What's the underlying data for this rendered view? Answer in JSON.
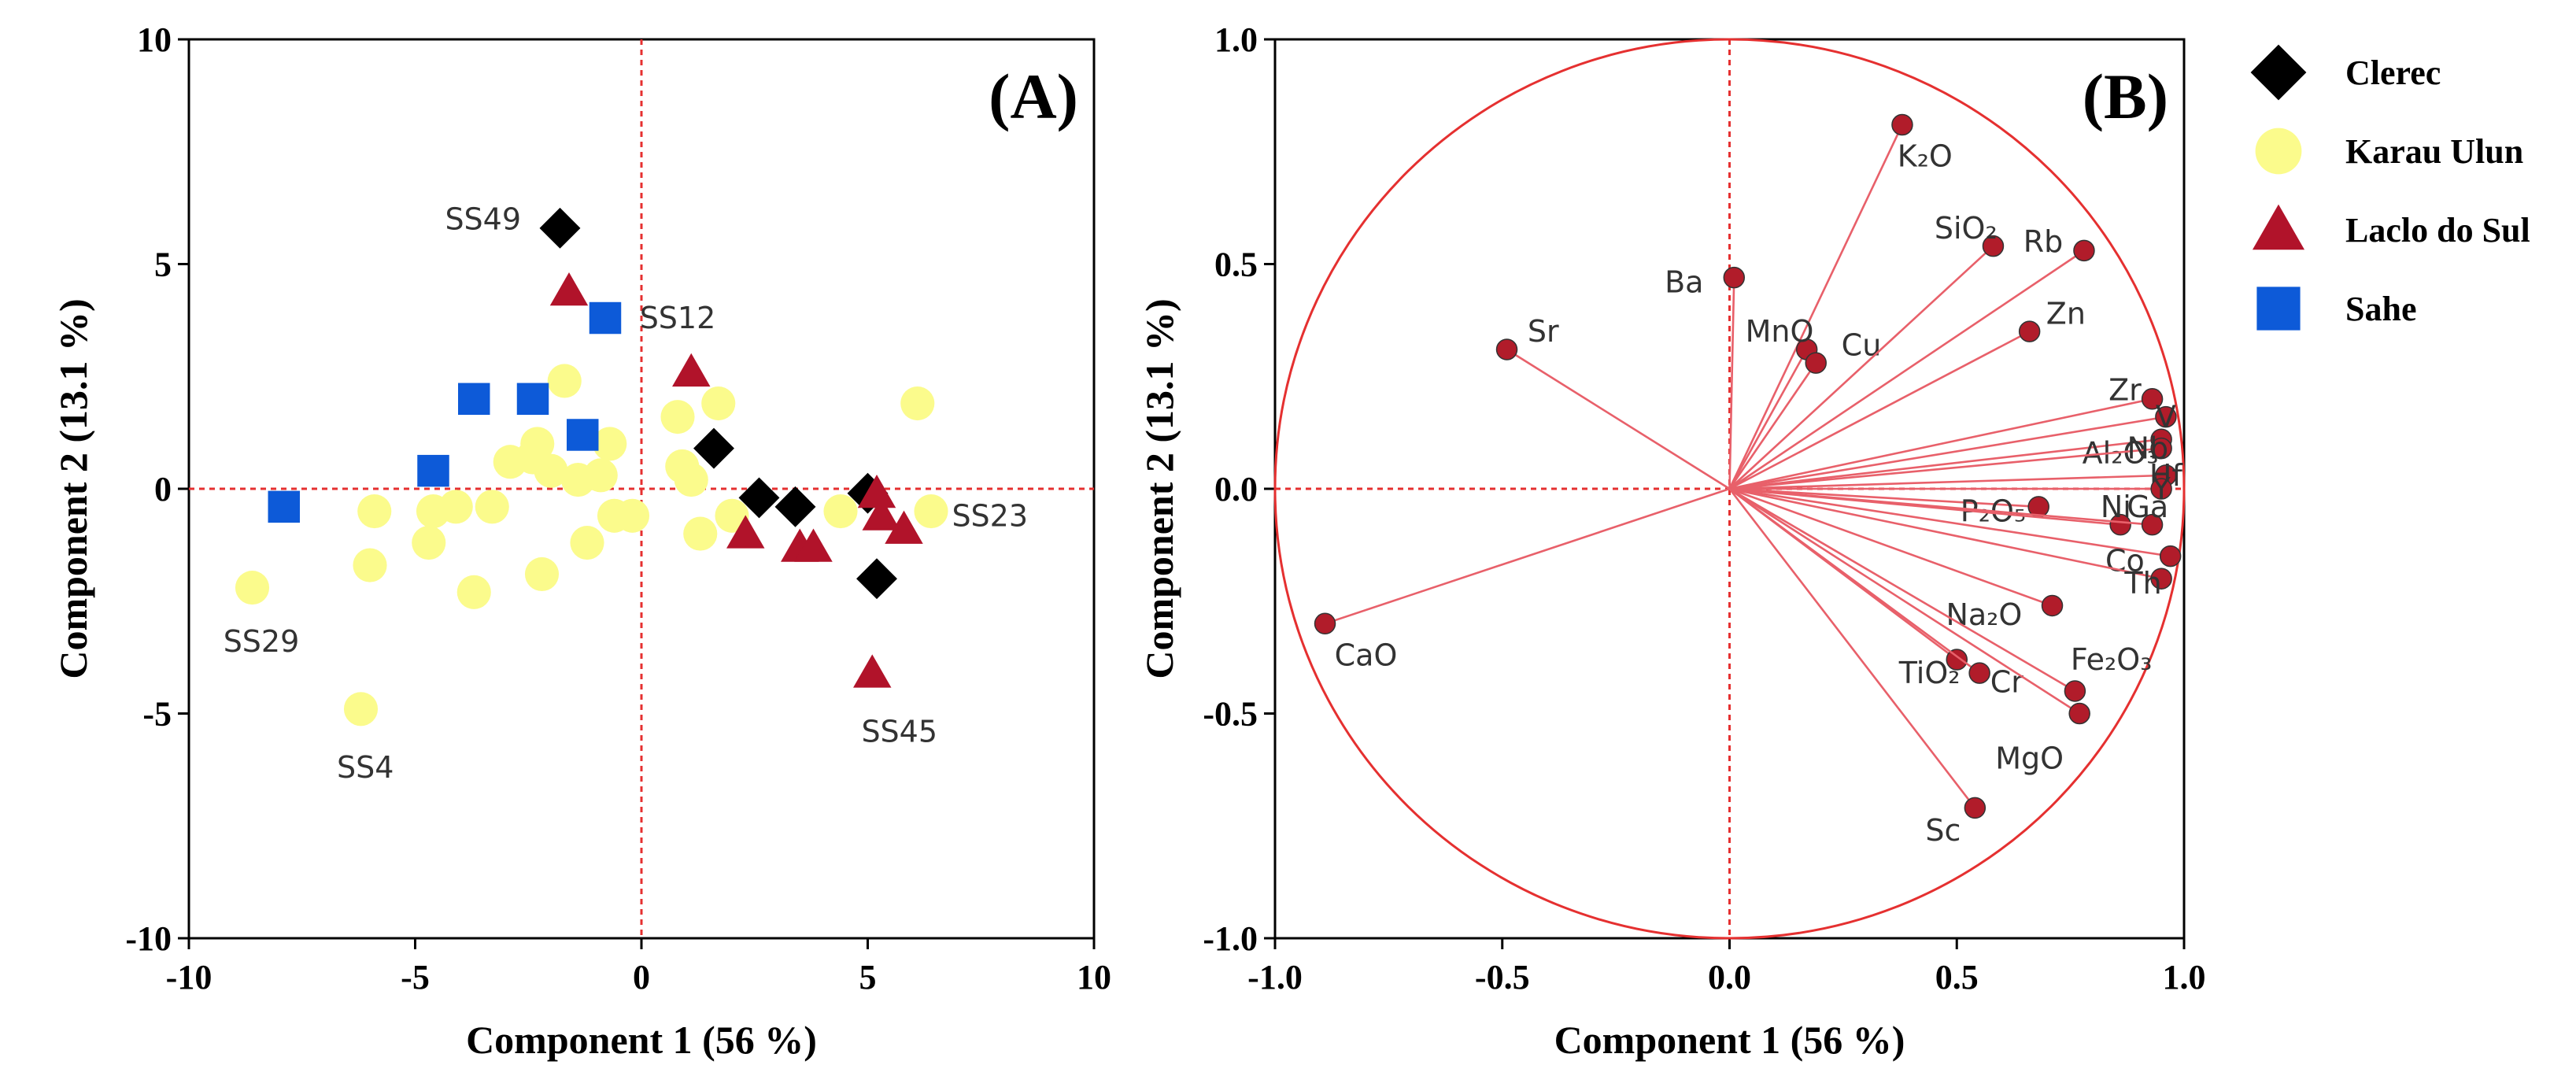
{
  "chart_data": [
    {
      "type": "scatter",
      "panel_label": "(A)",
      "xlabel": "Component 1  (56 %)",
      "ylabel": "Component 2  (13.1 %)",
      "xlim": [
        -10,
        10
      ],
      "ylim": [
        -10,
        10
      ],
      "xticks": [
        "-10",
        "-5",
        "0",
        "5",
        "10"
      ],
      "yticks": [
        "10",
        "5",
        "0",
        "-5",
        "-10"
      ],
      "series": [
        {
          "name": "Clerec",
          "marker": "diamond",
          "color": "#000000",
          "points": [
            [
              -1.8,
              5.8
            ],
            [
              1.6,
              0.9
            ],
            [
              2.6,
              -0.2
            ],
            [
              3.4,
              -0.4
            ],
            [
              5.0,
              -0.1
            ],
            [
              5.2,
              -2.0
            ]
          ]
        },
        {
          "name": "Karau Ulun",
          "marker": "circle",
          "color": "#fbfb8c",
          "points": [
            [
              -8.6,
              -2.2
            ],
            [
              -6.2,
              -4.9
            ],
            [
              -6.0,
              -1.7
            ],
            [
              -5.9,
              -0.5
            ],
            [
              -4.7,
              -1.2
            ],
            [
              -4.6,
              -0.5
            ],
            [
              -4.1,
              -0.4
            ],
            [
              -3.7,
              -2.3
            ],
            [
              -3.3,
              -0.4
            ],
            [
              -2.9,
              0.6
            ],
            [
              -2.4,
              0.7
            ],
            [
              -2.3,
              1.0
            ],
            [
              -2.2,
              -1.9
            ],
            [
              -2.0,
              0.4
            ],
            [
              -1.7,
              2.4
            ],
            [
              -1.4,
              0.2
            ],
            [
              -1.2,
              -1.2
            ],
            [
              -0.9,
              0.3
            ],
            [
              -0.7,
              1.0
            ],
            [
              -0.6,
              -0.6
            ],
            [
              -0.2,
              -0.6
            ],
            [
              0.8,
              1.6
            ],
            [
              0.9,
              0.5
            ],
            [
              1.1,
              0.2
            ],
            [
              1.3,
              -1.0
            ],
            [
              1.7,
              1.9
            ],
            [
              2.0,
              -0.6
            ],
            [
              4.4,
              -0.5
            ],
            [
              6.1,
              1.9
            ],
            [
              6.4,
              -0.5
            ]
          ]
        },
        {
          "name": "Laclo do Sul",
          "marker": "triangle",
          "color": "#b1132a",
          "points": [
            [
              -1.6,
              4.4
            ],
            [
              1.1,
              2.6
            ],
            [
              2.3,
              -1.0
            ],
            [
              3.5,
              -1.3
            ],
            [
              3.8,
              -1.3
            ],
            [
              5.2,
              -0.1
            ],
            [
              5.3,
              -0.6
            ],
            [
              5.8,
              -0.9
            ],
            [
              5.1,
              -4.1
            ]
          ]
        },
        {
          "name": "Sahe",
          "marker": "square",
          "color": "#0d5ad8",
          "points": [
            [
              -7.9,
              -0.4
            ],
            [
              -4.6,
              0.4
            ],
            [
              -3.7,
              2.0
            ],
            [
              -2.4,
              2.0
            ],
            [
              -1.3,
              1.2
            ],
            [
              -0.8,
              3.8
            ]
          ]
        }
      ],
      "annotations": [
        {
          "text": "SS49",
          "at": [
            -3.5,
            6.0
          ]
        },
        {
          "text": "SS12",
          "at": [
            0.8,
            3.8
          ]
        },
        {
          "text": "SS23",
          "at": [
            7.7,
            -0.6
          ]
        },
        {
          "text": "SS29",
          "at": [
            -8.4,
            -3.4
          ]
        },
        {
          "text": "SS4",
          "at": [
            -6.1,
            -6.2
          ]
        },
        {
          "text": "SS45",
          "at": [
            5.7,
            -5.4
          ]
        }
      ]
    },
    {
      "type": "biplot",
      "panel_label": "(B)",
      "xlabel": "Component 1  (56 %)",
      "ylabel": "Component 2  (13.1 %)",
      "xlim": [
        -1.0,
        1.0
      ],
      "ylim": [
        -1.0,
        1.0
      ],
      "xticks": [
        "-1.0",
        "-0.5",
        "0.0",
        "0.5",
        "1.0"
      ],
      "yticks": [
        "1.0",
        "0.5",
        "0.0",
        "-0.5",
        "-1.0"
      ],
      "vectors": [
        {
          "name": "K₂O",
          "x": 0.38,
          "y": 0.81,
          "label_at": [
            0.43,
            0.74
          ]
        },
        {
          "name": "Ba",
          "x": 0.01,
          "y": 0.47,
          "label_at": [
            -0.1,
            0.46
          ]
        },
        {
          "name": "Sr",
          "x": -0.49,
          "y": 0.31,
          "label_at": [
            -0.41,
            0.35
          ]
        },
        {
          "name": "MnO",
          "x": 0.17,
          "y": 0.31,
          "label_at": [
            0.11,
            0.35
          ]
        },
        {
          "name": "Cu",
          "x": 0.19,
          "y": 0.28,
          "label_at": [
            0.29,
            0.32
          ]
        },
        {
          "name": "SiO₂",
          "x": 0.58,
          "y": 0.54,
          "label_at": [
            0.52,
            0.58
          ]
        },
        {
          "name": "Rb",
          "x": 0.78,
          "y": 0.53,
          "label_at": [
            0.69,
            0.55
          ]
        },
        {
          "name": "Zn",
          "x": 0.66,
          "y": 0.35,
          "label_at": [
            0.74,
            0.39
          ]
        },
        {
          "name": "Zr",
          "x": 0.93,
          "y": 0.2,
          "label_at": [
            0.87,
            0.22
          ]
        },
        {
          "name": "V",
          "x": 0.96,
          "y": 0.16,
          "label_at": [
            0.96,
            0.16
          ]
        },
        {
          "name": "Al₂O₃",
          "x": 0.95,
          "y": 0.11,
          "label_at": [
            0.86,
            0.08
          ]
        },
        {
          "name": "Nb",
          "x": 0.95,
          "y": 0.09,
          "label_at": [
            0.92,
            0.09
          ]
        },
        {
          "name": "Hf",
          "x": 0.96,
          "y": 0.03,
          "label_at": [
            0.96,
            0.03
          ]
        },
        {
          "name": "Y",
          "x": 0.95,
          "y": 0.0,
          "label_at": [
            0.95,
            0.0
          ]
        },
        {
          "name": "P₂O₅",
          "x": 0.68,
          "y": -0.04,
          "label_at": [
            0.58,
            -0.05
          ]
        },
        {
          "name": "Ni",
          "x": 0.86,
          "y": -0.08,
          "label_at": [
            0.85,
            -0.04
          ]
        },
        {
          "name": "Ga",
          "x": 0.93,
          "y": -0.08,
          "label_at": [
            0.92,
            -0.04
          ]
        },
        {
          "name": "Co",
          "x": 0.97,
          "y": -0.15,
          "label_at": [
            0.87,
            -0.16
          ]
        },
        {
          "name": "Th",
          "x": 0.95,
          "y": -0.2,
          "label_at": [
            0.91,
            -0.21
          ]
        },
        {
          "name": "Na₂O",
          "x": 0.71,
          "y": -0.26,
          "label_at": [
            0.56,
            -0.28
          ]
        },
        {
          "name": "Fe₂O₃",
          "x": 0.76,
          "y": -0.45,
          "label_at": [
            0.84,
            -0.38
          ]
        },
        {
          "name": "TiO₂",
          "x": 0.5,
          "y": -0.38,
          "label_at": [
            0.44,
            -0.41
          ]
        },
        {
          "name": "Cr",
          "x": 0.55,
          "y": -0.41,
          "label_at": [
            0.61,
            -0.43
          ]
        },
        {
          "name": "MgO",
          "x": 0.77,
          "y": -0.5,
          "label_at": [
            0.66,
            -0.6
          ]
        },
        {
          "name": "CaO",
          "x": -0.89,
          "y": -0.3,
          "label_at": [
            -0.8,
            -0.37
          ]
        },
        {
          "name": "Sc",
          "x": 0.54,
          "y": -0.71,
          "label_at": [
            0.47,
            -0.76
          ]
        }
      ]
    }
  ],
  "legend": {
    "position": "right",
    "items": [
      {
        "label": "Clerec",
        "marker": "diamond",
        "color": "#000000"
      },
      {
        "label": "Karau Ulun",
        "marker": "circle",
        "color": "#fbfb8c"
      },
      {
        "label": "Laclo do Sul",
        "marker": "triangle",
        "color": "#b1132a"
      },
      {
        "label": "Sahe",
        "marker": "square",
        "color": "#0d5ad8"
      }
    ]
  },
  "colors": {
    "axis": "#000000",
    "reference": "#e53030",
    "vector": "#e8606a",
    "vector_point": "#b11c2a"
  }
}
